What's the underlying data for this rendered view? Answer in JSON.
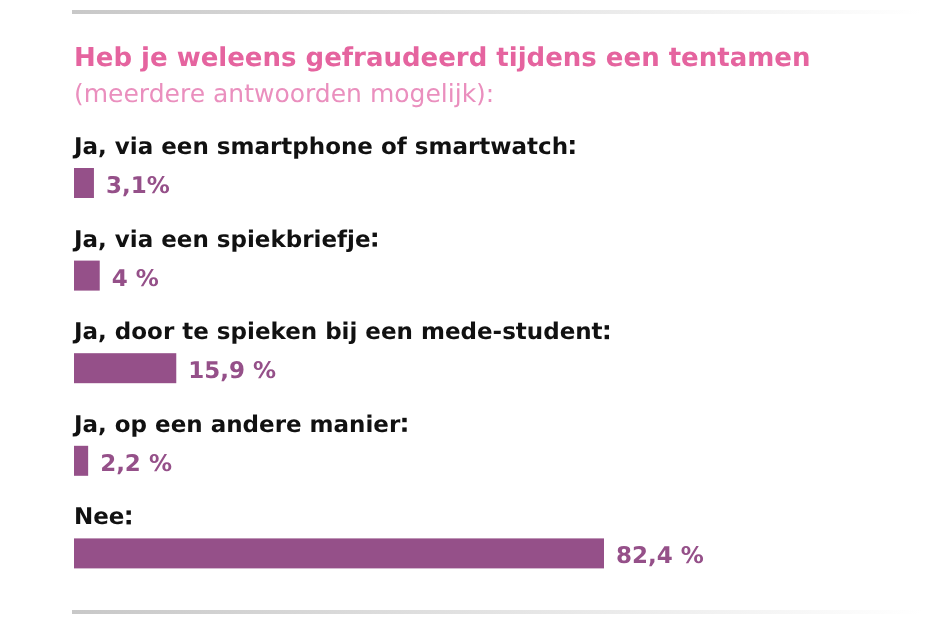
{
  "chart_data": {
    "type": "bar",
    "orientation": "horizontal",
    "title": "Heb je weleens gefraudeerd tijdens een tentamen",
    "subtitle": "(meerdere antwoorden mogelijk):",
    "categories": [
      "Ja, via een smartphone of smartwatch",
      "Ja, via een spiekbriefje",
      "Ja, door te spieken bij een mede-student",
      "Ja, op een andere manier",
      "Nee"
    ],
    "values": [
      3.1,
      4,
      15.9,
      2.2,
      82.4
    ],
    "value_labels": [
      "3,1%",
      "4 %",
      "15,9 %",
      "2,2 %",
      "82,4 %"
    ],
    "color": "#955089"
  }
}
